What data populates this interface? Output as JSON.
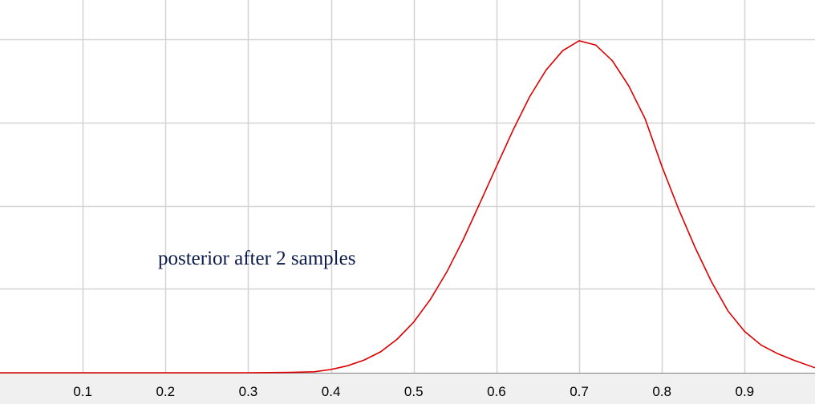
{
  "chart_data": {
    "type": "line",
    "title": "",
    "xlabel": "",
    "ylabel": "",
    "xlim": [
      0.0,
      0.985
    ],
    "x_ticks": [
      {
        "value": 0.1,
        "label": "0.1"
      },
      {
        "value": 0.2,
        "label": "0.2"
      },
      {
        "value": 0.3,
        "label": "0.3"
      },
      {
        "value": 0.4,
        "label": "0.4"
      },
      {
        "value": 0.5,
        "label": "0.5"
      },
      {
        "value": 0.6,
        "label": "0.6"
      },
      {
        "value": 0.7,
        "label": "0.7"
      },
      {
        "value": 0.8,
        "label": "0.8"
      },
      {
        "value": 0.9,
        "label": "0.9"
      }
    ],
    "y_gridlines": [
      0.25,
      0.5,
      0.75,
      1.0
    ],
    "ylim": [
      0,
      1.0
    ],
    "grid": true,
    "annotations": [
      {
        "text": "posterior after 2 samples"
      }
    ],
    "series": [
      {
        "color": "#dd0000",
        "x": [
          0.0,
          0.3,
          0.35,
          0.38,
          0.4,
          0.42,
          0.44,
          0.46,
          0.48,
          0.5,
          0.52,
          0.54,
          0.56,
          0.58,
          0.6,
          0.62,
          0.64,
          0.66,
          0.68,
          0.7,
          0.72,
          0.74,
          0.76,
          0.78,
          0.8,
          0.82,
          0.84,
          0.86,
          0.88,
          0.9,
          0.92,
          0.94,
          0.96,
          0.985
        ],
        "y": [
          0.0,
          0.0,
          0.001,
          0.003,
          0.01,
          0.021,
          0.038,
          0.063,
          0.101,
          0.152,
          0.22,
          0.303,
          0.401,
          0.51,
          0.62,
          0.729,
          0.829,
          0.91,
          0.968,
          0.998,
          0.985,
          0.938,
          0.862,
          0.762,
          0.62,
          0.493,
          0.377,
          0.273,
          0.185,
          0.124,
          0.083,
          0.057,
          0.037,
          0.015
        ]
      }
    ]
  }
}
